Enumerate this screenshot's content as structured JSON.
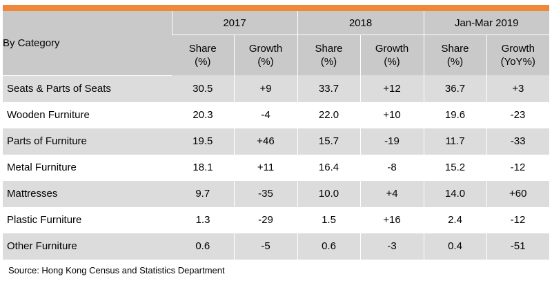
{
  "colors": {
    "accent_bar": "#f0883a",
    "header_bg": "#c9c9c9",
    "shade_bg": "#dcdcdc"
  },
  "header": {
    "category_label": "By Category",
    "years": [
      "2017",
      "2018",
      "Jan-Mar 2019"
    ],
    "sub": [
      {
        "share": [
          "Share",
          "(%)"
        ],
        "growth": [
          "Growth",
          "(%)"
        ]
      },
      {
        "share": [
          "Share",
          "(%)"
        ],
        "growth": [
          "Growth",
          "(%)"
        ]
      },
      {
        "share": [
          "Share",
          "(%)"
        ],
        "growth": [
          "Growth",
          "(YoY%)"
        ]
      }
    ]
  },
  "rows": [
    {
      "category": "Seats & Parts of Seats",
      "values": [
        "30.5",
        "+9",
        "33.7",
        "+12",
        "36.7",
        "+3"
      ]
    },
    {
      "category": "Wooden Furniture",
      "values": [
        "20.3",
        "-4",
        "22.0",
        "+10",
        "19.6",
        "-23"
      ]
    },
    {
      "category": "Parts of Furniture",
      "values": [
        "19.5",
        "+46",
        "15.7",
        "-19",
        "11.7",
        "-33"
      ]
    },
    {
      "category": "Metal Furniture",
      "values": [
        "18.1",
        "+11",
        "16.4",
        "-8",
        "15.2",
        "-12"
      ]
    },
    {
      "category": "Mattresses",
      "values": [
        "9.7",
        "-35",
        "10.0",
        "+4",
        "14.0",
        "+60"
      ]
    },
    {
      "category": "Plastic Furniture",
      "values": [
        "1.3",
        "-29",
        "1.5",
        "+16",
        "2.4",
        "-12"
      ]
    },
    {
      "category": "Other Furniture",
      "values": [
        "0.6",
        "-5",
        "0.6",
        "-3",
        "0.4",
        "-51"
      ]
    }
  ],
  "source": "Source: Hong Kong Census and Statistics Department"
}
